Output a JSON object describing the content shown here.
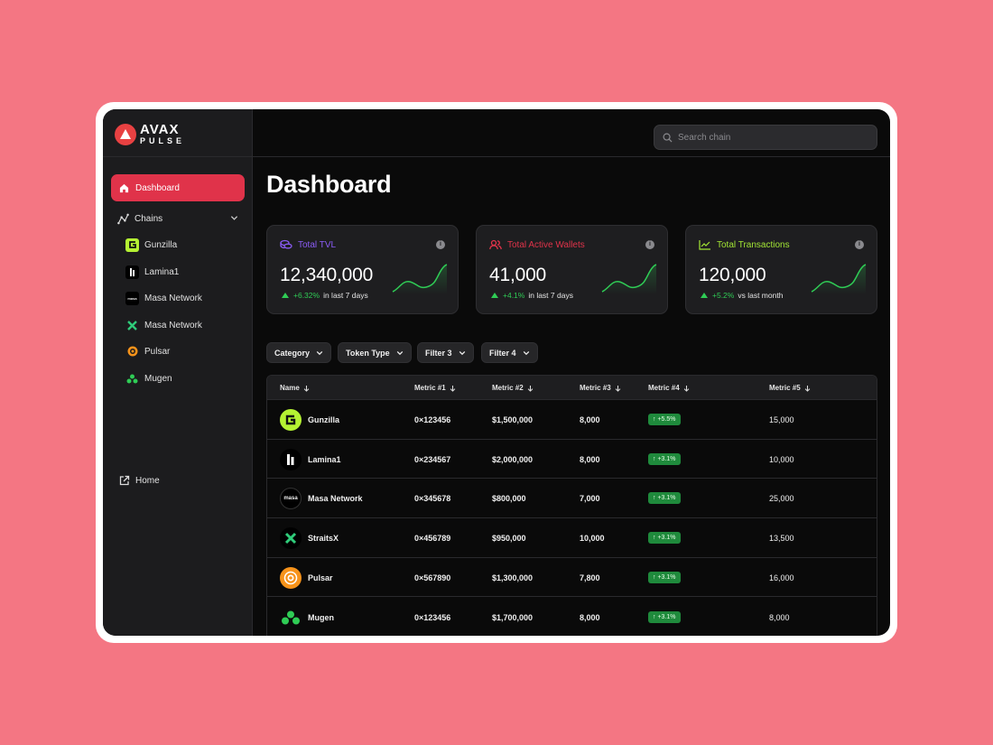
{
  "app": {
    "logo_line1": "AVAX",
    "logo_line2": "PULSE"
  },
  "search": {
    "placeholder": "Search chain"
  },
  "sidebar": {
    "dashboard_label": "Dashboard",
    "chains_label": "Chains",
    "chains": [
      {
        "label": "Gunzilla",
        "icon": "gunzilla-icon"
      },
      {
        "label": "Lamina1",
        "icon": "lamina1-icon"
      },
      {
        "label": "Masa Network",
        "icon": "masa-icon",
        "mark": "masa"
      },
      {
        "label": "Masa Network",
        "icon": "straitsx-icon"
      },
      {
        "label": "Pulsar",
        "icon": "pulsar-icon"
      },
      {
        "label": "Mugen",
        "icon": "mugen-icon"
      }
    ],
    "home_label": "Home"
  },
  "page": {
    "title": "Dashboard"
  },
  "cards": [
    {
      "title": "Total TVL",
      "value": "12,340,000",
      "delta": "+6.32%",
      "period": "in last 7 days",
      "color": "#8b5cf6",
      "icon": "coins-icon"
    },
    {
      "title": "Total Active Wallets",
      "value": "41,000",
      "delta": "+4.1%",
      "period": "in last 7 days",
      "color": "#e0334a",
      "icon": "users-icon"
    },
    {
      "title": "Total Transactions",
      "value": "120,000",
      "delta": "+5.2%",
      "period": "vs last month",
      "color": "#a3e635",
      "icon": "trend-icon"
    }
  ],
  "filters": [
    "Category",
    "Token Type",
    "Filter 3",
    "Filter 4"
  ],
  "table": {
    "columns": [
      "Name",
      "Metric #1",
      "Metric #2",
      "Metric #3",
      "Metric #4",
      "Metric #5"
    ],
    "rows": [
      {
        "name": "Gunzilla",
        "m1": "0×123456",
        "m2": "$1,500,000",
        "m3": "8,000",
        "m4": "+5.5%",
        "m5": "15,000",
        "icon": "gunzilla-icon"
      },
      {
        "name": "Lamina1",
        "m1": "0×234567",
        "m2": "$2,000,000",
        "m3": "8,000",
        "m4": "+3.1%",
        "m5": "10,000",
        "icon": "lamina1-icon"
      },
      {
        "name": "Masa Network",
        "m1": "0×345678",
        "m2": "$800,000",
        "m3": "7,000",
        "m4": "+3.1%",
        "m5": "25,000",
        "icon": "masa-icon",
        "mark": "masa"
      },
      {
        "name": "StraitsX",
        "m1": "0×456789",
        "m2": "$950,000",
        "m3": "10,000",
        "m4": "+3.1%",
        "m5": "13,500",
        "icon": "straitsx-icon"
      },
      {
        "name": "Pulsar",
        "m1": "0×567890",
        "m2": "$1,300,000",
        "m3": "7,800",
        "m4": "+3.1%",
        "m5": "16,000",
        "icon": "pulsar-icon"
      },
      {
        "name": "Mugen",
        "m1": "0×123456",
        "m2": "$1,700,000",
        "m3": "8,000",
        "m4": "+3.1%",
        "m5": "8,000",
        "icon": "mugen-icon"
      }
    ]
  }
}
